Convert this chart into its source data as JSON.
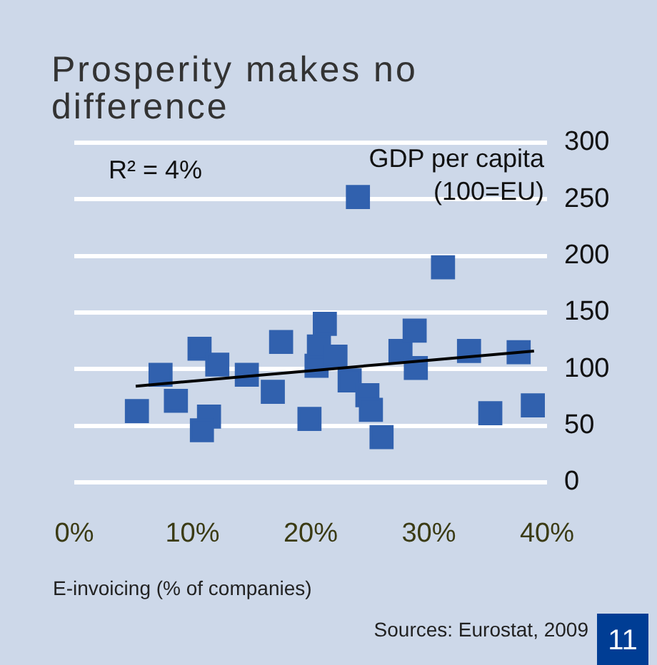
{
  "chart_data": {
    "type": "scatter",
    "title": "Prosperity makes no difference",
    "xlabel": "E-invoicing (% of companies)",
    "ylabel": "GDP per capita (100=EU)",
    "annotations": [
      "R² = 4%",
      "Sources: Eurostat, 2009",
      "11"
    ],
    "xlim": [
      0,
      40
    ],
    "xticks": [
      {
        "value": 0,
        "label": "0%"
      },
      {
        "value": 10,
        "label": "10%"
      },
      {
        "value": 20,
        "label": "20%"
      },
      {
        "value": 30,
        "label": "30%"
      },
      {
        "value": 40,
        "label": "40%"
      }
    ],
    "ylim": [
      0,
      300
    ],
    "yticks": [
      0,
      50,
      100,
      150,
      200,
      250,
      300
    ],
    "grid": "y",
    "legend": false,
    "series": [
      {
        "type": "scatter",
        "color": "#3161ae",
        "marker": "square",
        "x": [
          5.3,
          7.3,
          8.6,
          10.6,
          12.1,
          11.4,
          10.8,
          14.6,
          16.8,
          17.0,
          17.5,
          19.9,
          20.2,
          20.5,
          20.7,
          21.2,
          22.1,
          23.3,
          24.0,
          24.8,
          25.1,
          26.0,
          27.6,
          28.8,
          28.9,
          31.2,
          33.4,
          35.2,
          37.6,
          38.8
        ],
        "values": [
          63,
          95,
          72,
          118,
          104,
          58,
          46,
          95,
          80,
          null,
          124,
          56,
          null,
          103,
          120,
          140,
          111,
          90,
          252,
          77,
          64,
          40,
          116,
          134,
          101,
          190,
          116,
          61,
          115,
          68
        ]
      },
      {
        "type": "line",
        "color": "#000000",
        "marker": "none",
        "line_style": "solid",
        "x": [
          5.2,
          38.9
        ],
        "values": [
          85,
          116
        ]
      }
    ]
  }
}
